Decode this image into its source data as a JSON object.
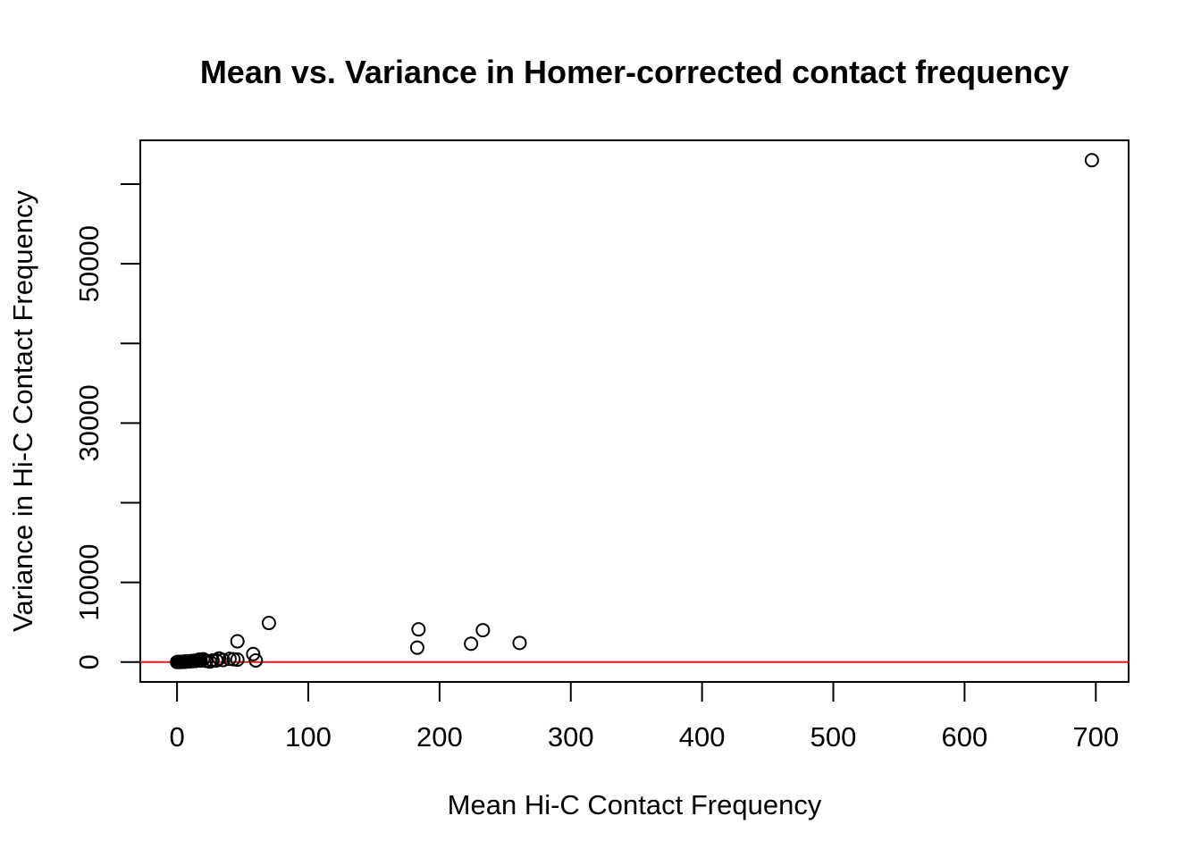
{
  "chart_data": {
    "type": "scatter",
    "title": "Mean vs. Variance in Homer-corrected contact frequency",
    "xlabel": "Mean Hi-C Contact Frequency",
    "ylabel": "Variance in Hi-C Contact Frequency",
    "xlim": [
      -28,
      725
    ],
    "ylim": [
      -2500,
      65500
    ],
    "xticks": [
      0,
      100,
      200,
      300,
      400,
      500,
      600,
      700
    ],
    "xtick_labels": [
      "0",
      "100",
      "200",
      "300",
      "400",
      "500",
      "600",
      "700"
    ],
    "yticks": [
      0,
      10000,
      20000,
      30000,
      40000,
      50000,
      60000
    ],
    "ytick_labels": [
      "0",
      "10000",
      "",
      "30000",
      "",
      "50000",
      ""
    ],
    "grid": false,
    "marker": "open-circle",
    "reference_line": {
      "y": 0,
      "color": "#e41a1c"
    },
    "points": [
      {
        "x": 0,
        "y": 0
      },
      {
        "x": 1,
        "y": 5
      },
      {
        "x": 1.5,
        "y": 10
      },
      {
        "x": 2,
        "y": 8
      },
      {
        "x": 2.5,
        "y": 15
      },
      {
        "x": 3,
        "y": 20
      },
      {
        "x": 3.5,
        "y": 12
      },
      {
        "x": 4,
        "y": 25
      },
      {
        "x": 4.5,
        "y": 30
      },
      {
        "x": 5,
        "y": 40
      },
      {
        "x": 5.5,
        "y": 35
      },
      {
        "x": 6,
        "y": 50
      },
      {
        "x": 7,
        "y": 60
      },
      {
        "x": 8,
        "y": 70
      },
      {
        "x": 9,
        "y": 80
      },
      {
        "x": 10,
        "y": 100
      },
      {
        "x": 11,
        "y": 120
      },
      {
        "x": 12,
        "y": 110
      },
      {
        "x": 13,
        "y": 150
      },
      {
        "x": 14,
        "y": 130
      },
      {
        "x": 15,
        "y": 200
      },
      {
        "x": 16,
        "y": 250
      },
      {
        "x": 17,
        "y": 300
      },
      {
        "x": 18,
        "y": 180
      },
      {
        "x": 20,
        "y": 350
      },
      {
        "x": 22,
        "y": 150
      },
      {
        "x": 25,
        "y": 50
      },
      {
        "x": 27,
        "y": 200
      },
      {
        "x": 30,
        "y": 200
      },
      {
        "x": 32,
        "y": 450
      },
      {
        "x": 35,
        "y": 250
      },
      {
        "x": 40,
        "y": 400
      },
      {
        "x": 43,
        "y": 350
      },
      {
        "x": 46,
        "y": 300
      },
      {
        "x": 46,
        "y": 2600
      },
      {
        "x": 58,
        "y": 1000
      },
      {
        "x": 60,
        "y": 200
      },
      {
        "x": 70,
        "y": 4900
      },
      {
        "x": 183,
        "y": 1800
      },
      {
        "x": 184,
        "y": 4100
      },
      {
        "x": 224,
        "y": 2300
      },
      {
        "x": 233,
        "y": 4000
      },
      {
        "x": 261,
        "y": 2400
      },
      {
        "x": 697,
        "y": 63000
      }
    ]
  },
  "colors": {
    "reference_line": "#e41a1c",
    "marker_stroke": "#000000",
    "background": "#ffffff"
  }
}
